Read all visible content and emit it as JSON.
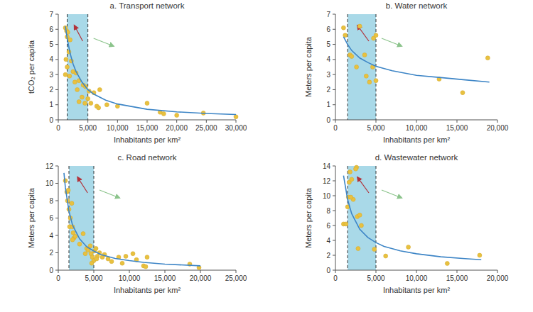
{
  "chart_data": [
    {
      "type": "scatter",
      "title": "a. Transport network",
      "x_label": "Inhabitants per km²",
      "y_label": "tCO₂ per capita",
      "xlim": [
        0,
        30000
      ],
      "xticks": [
        0,
        {
          "value": 5000,
          "label": "5,000"
        },
        {
          "value": 10000,
          "label": "10,000"
        },
        {
          "value": 15000,
          "label": "15,000"
        },
        {
          "value": 20000,
          "label": "20,000"
        },
        {
          "value": 25000,
          "label": "25,000"
        },
        {
          "value": 30000,
          "label": "30,000"
        }
      ],
      "ylim": [
        0,
        7
      ],
      "yticks": [
        0,
        1,
        2,
        3,
        4,
        5,
        6,
        7
      ],
      "highlight_range": [
        1500,
        5000
      ],
      "series": [
        {
          "type": "scatter",
          "color": "#e8c140",
          "x": [
            1200,
            1400,
            1600,
            1500,
            2000,
            1800,
            1300,
            2200,
            1500,
            2500,
            1200,
            3000,
            1900,
            3500,
            2800,
            4200,
            3200,
            4600,
            5200,
            6000,
            7000,
            4000,
            5000,
            3500,
            4500,
            5500,
            6500,
            6800,
            8200,
            10000,
            15000,
            17200,
            17800,
            20000,
            24500,
            30000
          ],
          "values": [
            6.1,
            5.9,
            5.8,
            5.5,
            5.3,
            4.5,
            4.0,
            3.9,
            3.5,
            3.2,
            3.0,
            3.1,
            2.9,
            2.6,
            2.5,
            2.3,
            2.0,
            2.2,
            1.9,
            1.8,
            2.0,
            1.5,
            1.4,
            1.2,
            1.1,
            1.1,
            0.9,
            0.8,
            1.0,
            0.9,
            1.1,
            0.5,
            0.4,
            0.3,
            0.45,
            0.2
          ]
        },
        {
          "type": "line",
          "color": "#3d85c6",
          "x": [
            1200,
            1500,
            2000,
            2500,
            3000,
            4000,
            5000,
            6000,
            8000,
            10000,
            15000,
            20000,
            25000,
            30000
          ],
          "values": [
            6.2,
            5.4,
            4.4,
            3.7,
            3.2,
            2.5,
            2.0,
            1.7,
            1.3,
            1.05,
            0.7,
            0.53,
            0.42,
            0.35
          ]
        }
      ]
    },
    {
      "type": "scatter",
      "title": "b. Water network",
      "x_label": "Inhabitants per km²",
      "y_label": "Meters per capita",
      "xlim": [
        0,
        20000
      ],
      "xticks": [
        0,
        {
          "value": 5000,
          "label": "5,000"
        },
        {
          "value": 10000,
          "label": "10,000"
        },
        {
          "value": 15000,
          "label": "15,000"
        },
        {
          "value": 20000,
          "label": "20,000"
        }
      ],
      "ylim": [
        0,
        7
      ],
      "yticks": [
        0,
        1,
        2,
        3,
        4,
        5,
        6,
        7
      ],
      "highlight_range": [
        1500,
        5000
      ],
      "series": [
        {
          "type": "scatter",
          "color": "#e8c140",
          "x": [
            1000,
            1200,
            1800,
            2000,
            3000,
            2600,
            3600,
            3800,
            4200,
            4600,
            4700,
            5000,
            5000,
            12800,
            15700,
            18800
          ],
          "values": [
            6.1,
            5.6,
            4.3,
            4.2,
            6.2,
            3.5,
            4.3,
            2.9,
            2.5,
            3.5,
            5.4,
            5.6,
            2.6,
            2.7,
            1.8,
            4.1
          ]
        },
        {
          "type": "line",
          "color": "#3d85c6",
          "x": [
            1000,
            1500,
            2000,
            3000,
            4000,
            5000,
            7000,
            10000,
            13000,
            16000,
            19000
          ],
          "values": [
            5.5,
            5.0,
            4.6,
            4.1,
            3.8,
            3.55,
            3.25,
            2.95,
            2.8,
            2.65,
            2.5
          ]
        }
      ]
    },
    {
      "type": "scatter",
      "title": "c. Road network",
      "x_label": "Inhabitants per km²",
      "y_label": "Meters per capita",
      "xlim": [
        0,
        25000
      ],
      "xticks": [
        0,
        {
          "value": 5000,
          "label": "5,000"
        },
        {
          "value": 10000,
          "label": "10,000"
        },
        {
          "value": 15000,
          "label": "15,000"
        },
        {
          "value": 20000,
          "label": "20,000"
        },
        {
          "value": 25000,
          "label": "25,000"
        }
      ],
      "ylim": [
        0,
        12
      ],
      "yticks": [
        0,
        2,
        4,
        6,
        8,
        10,
        12
      ],
      "highlight_range": [
        1500,
        5000
      ],
      "series": [
        {
          "type": "scatter",
          "color": "#e8c140",
          "x": [
            1000,
            1200,
            1400,
            1300,
            1500,
            1700,
            1600,
            1900,
            2000,
            2100,
            2200,
            2400,
            2000,
            3500,
            3000,
            4000,
            4200,
            4500,
            4600,
            4800,
            5000,
            5100,
            5300,
            5500,
            5800,
            6200,
            6500,
            7000,
            7500,
            8500,
            9000,
            9500,
            10500,
            11000,
            12000,
            12300,
            12500,
            18500,
            19800,
            4700,
            3800,
            5400
          ],
          "values": [
            10.3,
            9.0,
            9.2,
            8.0,
            7.0,
            6.0,
            5.0,
            7.7,
            5.0,
            4.3,
            3.7,
            3.9,
            3.5,
            4.2,
            3.0,
            2.5,
            2.3,
            2.8,
            1.9,
            1.5,
            1.1,
            2.2,
            2.5,
            1.6,
            2.0,
            1.5,
            1.8,
            1.3,
            1.0,
            1.5,
            0.8,
            1.6,
            1.9,
            1.2,
            0.5,
            0.4,
            1.5,
            0.7,
            0.3,
            0.8,
            1.9,
            1.3
          ]
        },
        {
          "type": "line",
          "color": "#3d85c6",
          "x": [
            800,
            1000,
            1500,
            2000,
            3000,
            4000,
            5000,
            6000,
            8000,
            10000,
            12000,
            15000,
            20000
          ],
          "values": [
            11.2,
            9.5,
            6.8,
            5.2,
            3.6,
            2.7,
            2.2,
            1.8,
            1.35,
            1.1,
            0.9,
            0.7,
            0.5
          ]
        }
      ]
    },
    {
      "type": "scatter",
      "title": "d. Wastewater network",
      "x_label": "Inhabitants per km²",
      "y_label": "Meters per capita",
      "xlim": [
        0,
        20000
      ],
      "xticks": [
        0,
        {
          "value": 5000,
          "label": "5,000"
        },
        {
          "value": 10000,
          "label": "10,000"
        },
        {
          "value": 15000,
          "label": "15,000"
        },
        {
          "value": 20000,
          "label": "20,000"
        }
      ],
      "ylim": [
        0,
        14
      ],
      "yticks": [
        0,
        2,
        4,
        6,
        8,
        10,
        12,
        14
      ],
      "highlight_range": [
        1500,
        5000
      ],
      "series": [
        {
          "type": "scatter",
          "color": "#e8c140",
          "x": [
            1000,
            1300,
            1500,
            1600,
            1700,
            1800,
            2000,
            2200,
            2600,
            2700,
            2800,
            3000,
            3200,
            2500,
            4800,
            6200,
            9000,
            13800,
            17800,
            1900
          ],
          "values": [
            6.2,
            6.2,
            8.5,
            9.8,
            11.8,
            13.2,
            12.2,
            9.5,
            13.8,
            7.2,
            2.9,
            7.4,
            6.0,
            13.6,
            2.8,
            1.9,
            3.1,
            0.9,
            2.0,
            9.8
          ]
        },
        {
          "type": "line",
          "color": "#3d85c6",
          "x": [
            1000,
            1500,
            2000,
            3000,
            4000,
            5000,
            6000,
            8000,
            10000,
            13000,
            16000,
            18000
          ],
          "values": [
            12.7,
            9.5,
            7.6,
            5.5,
            4.4,
            3.7,
            3.2,
            2.6,
            2.2,
            1.8,
            1.55,
            1.4
          ]
        }
      ]
    }
  ]
}
